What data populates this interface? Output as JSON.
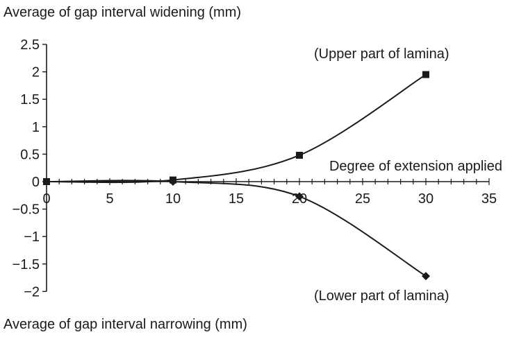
{
  "chart_data": {
    "type": "line",
    "title": "",
    "ylabel_top": "Average of gap interval widening (mm)",
    "ylabel_bottom": "Average of gap interval narrowing (mm)",
    "xlabel": "Degree of extension applied",
    "xlim": [
      0,
      35
    ],
    "ylim": [
      -2,
      2.5
    ],
    "x_ticks": [
      0,
      5,
      10,
      15,
      20,
      25,
      30,
      35
    ],
    "x_tick_labels": [
      "0",
      "5",
      "10",
      "15",
      "20",
      "25",
      "30",
      "35"
    ],
    "y_ticks": [
      2.5,
      2,
      1.5,
      1,
      0.5,
      0,
      -0.5,
      -1,
      -1.5,
      -2
    ],
    "y_tick_labels": [
      "2.5",
      "2",
      "1.5",
      "1",
      "0.5",
      "0",
      "−0.5",
      "−1",
      "−1.5",
      "−2"
    ],
    "grid": false,
    "series": [
      {
        "name": "(Upper part of lamina)",
        "marker": "square",
        "color": "#1a1a1a",
        "x": [
          0,
          10,
          20,
          30
        ],
        "y": [
          0,
          0.03,
          0.48,
          1.95
        ]
      },
      {
        "name": "(Lower part of lamina)",
        "marker": "diamond",
        "color": "#1a1a1a",
        "x": [
          0,
          10,
          20,
          30
        ],
        "y": [
          0,
          0,
          -0.27,
          -1.72
        ]
      }
    ]
  }
}
